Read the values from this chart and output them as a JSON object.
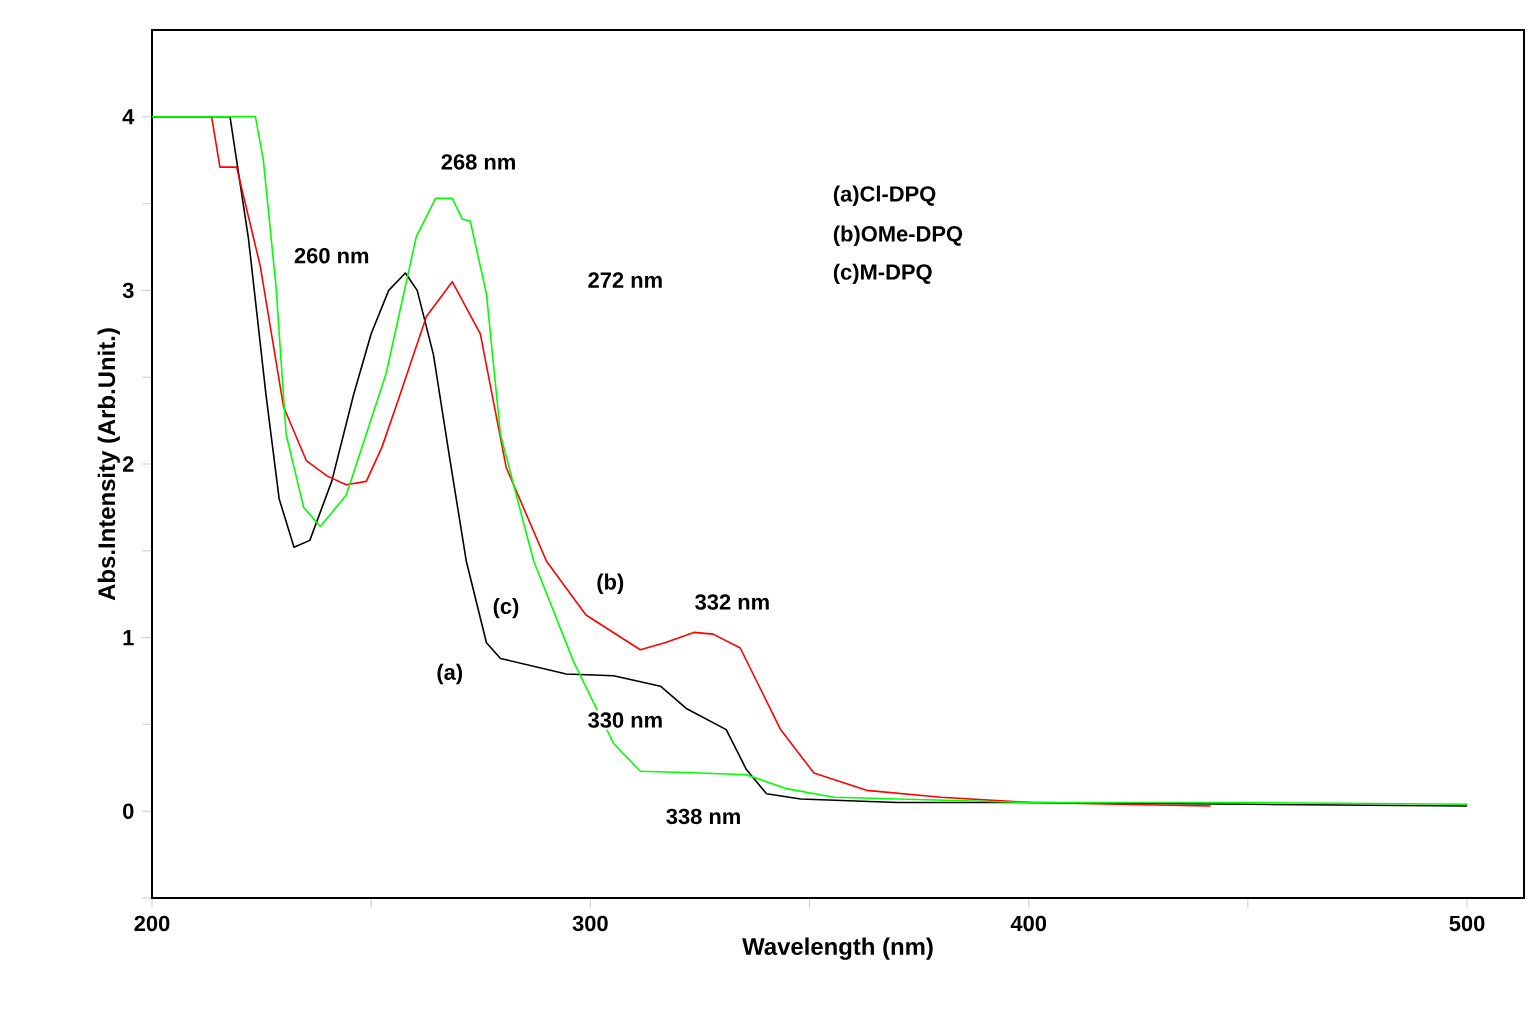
{
  "chart_data": {
    "type": "line",
    "xlabel": "Wavelength (nm)",
    "ylabel": "Abs.Intensity (Arb.Unit.)",
    "xlim": [
      200,
      513
    ],
    "ylim": [
      -0.5,
      4.5
    ],
    "xticks": [
      200,
      {
        "value": 250,
        "label": null
      },
      300,
      {
        "value": 350,
        "label": null
      },
      400,
      {
        "value": 450,
        "label": null
      },
      500
    ],
    "yticks": [
      {
        "value": -0.5,
        "label": null
      },
      0,
      {
        "value": 0.5,
        "label": null
      },
      1,
      {
        "value": 1.5,
        "label": null
      },
      2,
      {
        "value": 2.5,
        "label": null
      },
      3,
      {
        "value": 3.5,
        "label": null
      },
      4
    ],
    "grid": false,
    "marker": "none",
    "line_style": "solid",
    "series": [
      {
        "color": "#000000",
        "x": [
          200,
          217.8,
          222,
          226,
          229,
          232.4,
          236,
          241,
          246,
          250,
          254,
          257.8,
          260.5,
          264.2,
          268,
          271.7,
          276.3,
          279.5,
          294.5,
          305.3,
          316,
          322,
          331,
          335.6,
          340.2,
          348,
          370,
          400,
          450,
          500
        ],
        "values": [
          4,
          4,
          3.3,
          2.4,
          1.8,
          1.52,
          1.56,
          1.9,
          2.4,
          2.75,
          3.0,
          3.1,
          3.0,
          2.63,
          2.02,
          1.44,
          0.97,
          0.88,
          0.79,
          0.78,
          0.72,
          0.59,
          0.47,
          0.24,
          0.1,
          0.07,
          0.05,
          0.05,
          0.04,
          0.03
        ]
      },
      {
        "color": "#ff0000",
        "x": [
          200,
          213.6,
          215.5,
          219.3,
          224.7,
          230,
          235.2,
          240,
          244.3,
          248.9,
          252.5,
          256.6,
          262.6,
          268.5,
          274.9,
          280.8,
          290,
          299,
          311.4,
          317,
          323.6,
          328,
          334.2,
          343.4,
          351,
          363,
          380,
          400,
          441.5
        ],
        "values": [
          4,
          4,
          3.71,
          3.71,
          3.14,
          2.33,
          2.02,
          1.93,
          1.88,
          1.9,
          2.1,
          2.4,
          2.85,
          3.05,
          2.75,
          1.98,
          1.44,
          1.13,
          0.93,
          0.97,
          1.03,
          1.02,
          0.94,
          0.47,
          0.22,
          0.12,
          0.08,
          0.05,
          0.03
        ]
      },
      {
        "color": "#00ff00",
        "x": [
          200,
          223.6,
          225.4,
          228.3,
          230.6,
          234.6,
          238.4,
          244.3,
          253.4,
          260.3,
          264.7,
          268.5,
          270.8,
          272.6,
          276.3,
          279.5,
          285.4,
          287.1,
          296.2,
          305.3,
          311.4,
          325.1,
          335.6,
          344.7,
          355.6,
          400,
          450,
          500
        ],
        "values": [
          4,
          4,
          3.75,
          3.02,
          2.17,
          1.75,
          1.64,
          1.82,
          2.52,
          3.31,
          3.53,
          3.53,
          3.41,
          3.4,
          2.98,
          2.17,
          1.6,
          1.44,
          0.86,
          0.39,
          0.23,
          0.22,
          0.21,
          0.13,
          0.08,
          0.05,
          0.05,
          0.04
        ]
      }
    ],
    "annotations": [
      "260 nm",
      "268 nm",
      "272 nm",
      "332 nm",
      "330 nm",
      "338 nm",
      "(a)",
      "(b)",
      "(c)",
      "(a)Cl-DPQ",
      "(b)OMe-DPQ",
      "(c)M-DPQ"
    ]
  }
}
